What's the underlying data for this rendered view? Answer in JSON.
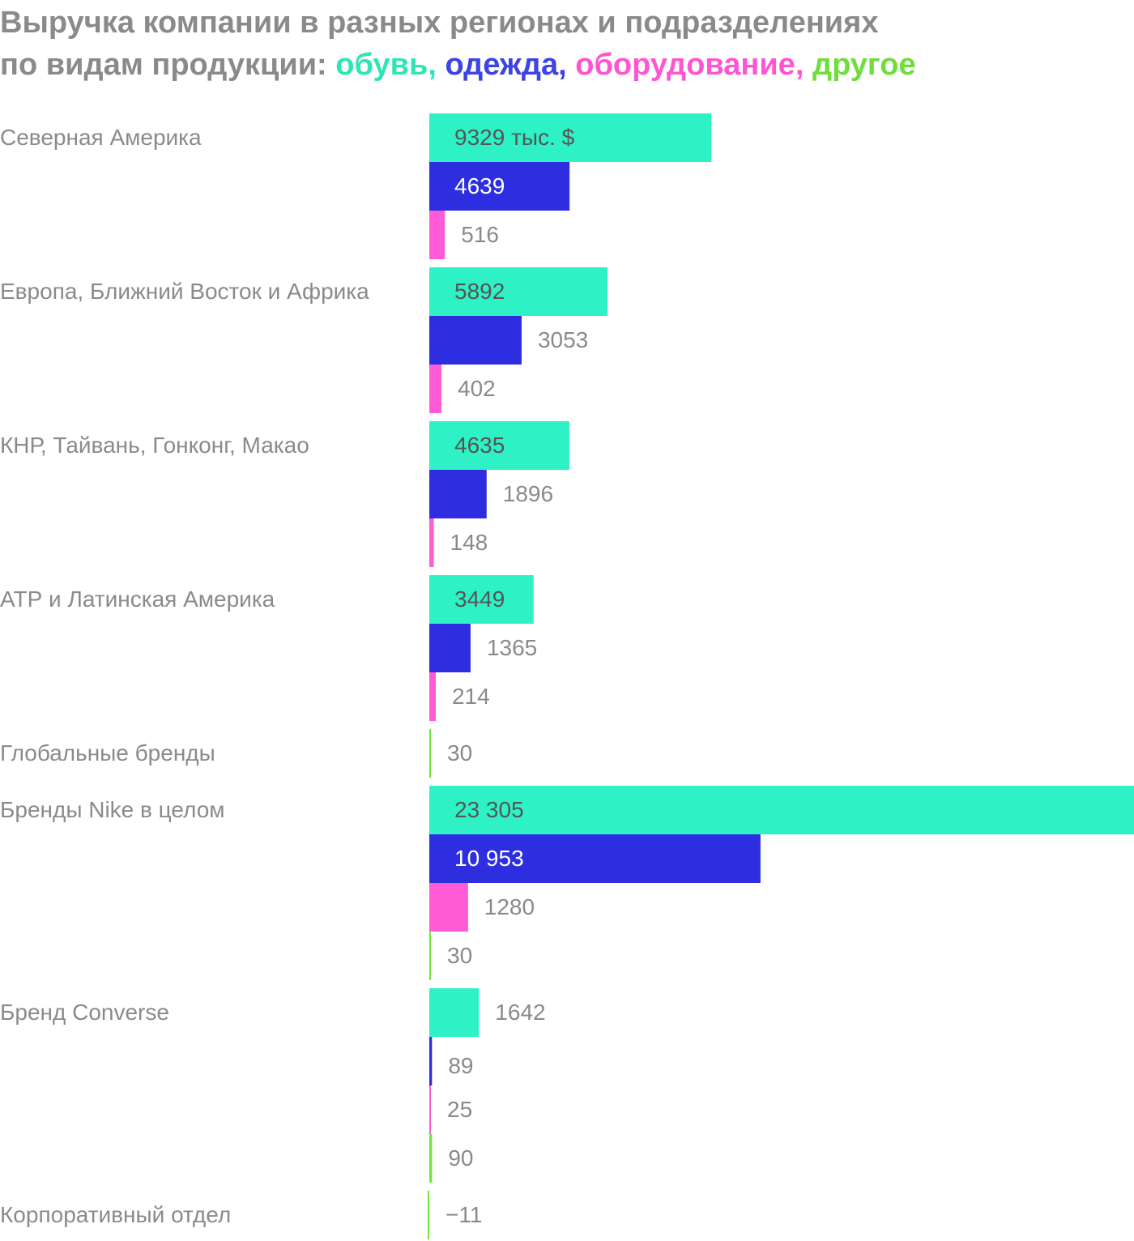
{
  "title": {
    "line1": "Выручка компании в разных регионах и подразделениях",
    "line2_prefix": "по видам продукции:",
    "legend": [
      {
        "text": "обувь",
        "color": "#2fe5b5",
        "sep": ","
      },
      {
        "text": "одежда",
        "color": "#3d43e6",
        "sep": ","
      },
      {
        "text": "оборудование",
        "color": "#ff55d2",
        "sep": ","
      },
      {
        "text": "другое",
        "color": "#6fdd3a",
        "sep": ""
      }
    ]
  },
  "chart_data": {
    "type": "bar",
    "orientation": "horizontal",
    "unit": "тыс. $",
    "series": [
      {
        "name": "обувь",
        "color": "#2ef2c6"
      },
      {
        "name": "одежда",
        "color": "#2e2ee0"
      },
      {
        "name": "оборудование",
        "color": "#ff5bd6"
      },
      {
        "name": "другое",
        "color": "#6fe63a"
      }
    ],
    "groups": [
      {
        "label": "Северная Америка",
        "bars": [
          {
            "series": "обувь",
            "value": 9329,
            "label": "9329 тыс. $"
          },
          {
            "series": "одежда",
            "value": 4639,
            "label": "4639"
          },
          {
            "series": "оборудование",
            "value": 516,
            "label": "516"
          }
        ]
      },
      {
        "label": "Европа, Ближний Восток и Африка",
        "bars": [
          {
            "series": "обувь",
            "value": 5892,
            "label": "5892"
          },
          {
            "series": "одежда",
            "value": 3053,
            "label": "3053"
          },
          {
            "series": "оборудование",
            "value": 402,
            "label": "402"
          }
        ]
      },
      {
        "label": "КНР, Тайвань, Гонконг, Макао",
        "bars": [
          {
            "series": "обувь",
            "value": 4635,
            "label": "4635"
          },
          {
            "series": "одежда",
            "value": 1896,
            "label": "1896"
          },
          {
            "series": "оборудование",
            "value": 148,
            "label": "148"
          }
        ]
      },
      {
        "label": "АТР и Латинская Америка",
        "bars": [
          {
            "series": "обувь",
            "value": 3449,
            "label": "3449"
          },
          {
            "series": "одежда",
            "value": 1365,
            "label": "1365"
          },
          {
            "series": "оборудование",
            "value": 214,
            "label": "214"
          }
        ]
      },
      {
        "label": "Глобальные бренды",
        "bars": [
          {
            "series": "другое",
            "value": 30,
            "label": "30"
          }
        ]
      },
      {
        "label": "Бренды Nike в целом",
        "bars": [
          {
            "series": "обувь",
            "value": 23305,
            "label": "23 305"
          },
          {
            "series": "одежда",
            "value": 10953,
            "label": "10 953"
          },
          {
            "series": "оборудование",
            "value": 1280,
            "label": "1280"
          },
          {
            "series": "другое",
            "value": 30,
            "label": "30"
          }
        ]
      },
      {
        "label": "Бренд Converse",
        "bars": [
          {
            "series": "обувь",
            "value": 1642,
            "label": "1642"
          },
          {
            "series": "одежда",
            "value": 89,
            "label": "89"
          },
          {
            "series": "оборудование",
            "value": 25,
            "label": "25"
          },
          {
            "series": "другое",
            "value": 90,
            "label": "90"
          }
        ]
      },
      {
        "label": "Корпоративный отдел",
        "bars": [
          {
            "series": "другое",
            "value": -11,
            "label": "−11"
          }
        ]
      }
    ]
  }
}
